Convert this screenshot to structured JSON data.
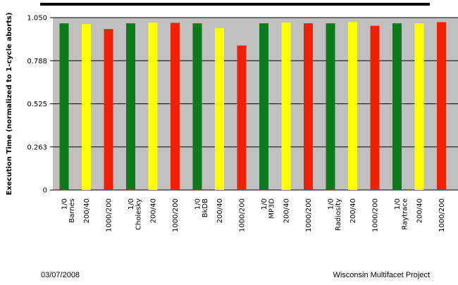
{
  "footer": {
    "date": "03/07/2008",
    "project": "Wisconsin Multifacet Project"
  },
  "chart_data": {
    "type": "bar",
    "title": "",
    "xlabel": "",
    "ylabel": "Execution Time (normalized to 1-cycle aborts)",
    "ylim": [
      0,
      1.05
    ],
    "yticks": [
      "0",
      "0.263",
      "0.525",
      "0.788",
      "1.050"
    ],
    "grid": true,
    "legend": "none",
    "colors": {
      "1/0": "#0a7a1a",
      "200/40": "#ffff00",
      "1000/200": "#ee2200",
      "plot_bg": "#c0c0c0"
    },
    "groups": [
      {
        "name": "Barnes",
        "bars": [
          {
            "label": "1/0",
            "value": 1.015
          },
          {
            "label": "200/40",
            "value": 1.01
          },
          {
            "label": "1000/200",
            "value": 0.98
          }
        ]
      },
      {
        "name": "Cholesky",
        "bars": [
          {
            "label": "1/0",
            "value": 1.015
          },
          {
            "label": "200/40",
            "value": 1.02
          },
          {
            "label": "1000/200",
            "value": 1.018
          }
        ]
      },
      {
        "name": "BkDB",
        "bars": [
          {
            "label": "1/0",
            "value": 1.015
          },
          {
            "label": "200/40",
            "value": 0.985
          },
          {
            "label": "1000/200",
            "value": 0.88
          }
        ]
      },
      {
        "name": "MP3D",
        "bars": [
          {
            "label": "1/0",
            "value": 1.015
          },
          {
            "label": "200/40",
            "value": 1.02
          },
          {
            "label": "1000/200",
            "value": 1.015
          }
        ]
      },
      {
        "name": "Radiosity",
        "bars": [
          {
            "label": "1/0",
            "value": 1.015
          },
          {
            "label": "200/40",
            "value": 1.022
          },
          {
            "label": "1000/200",
            "value": 1.0
          }
        ]
      },
      {
        "name": "Raytrace",
        "bars": [
          {
            "label": "1/0",
            "value": 1.015
          },
          {
            "label": "200/40",
            "value": 1.015
          },
          {
            "label": "1000/200",
            "value": 1.022
          }
        ]
      }
    ]
  }
}
